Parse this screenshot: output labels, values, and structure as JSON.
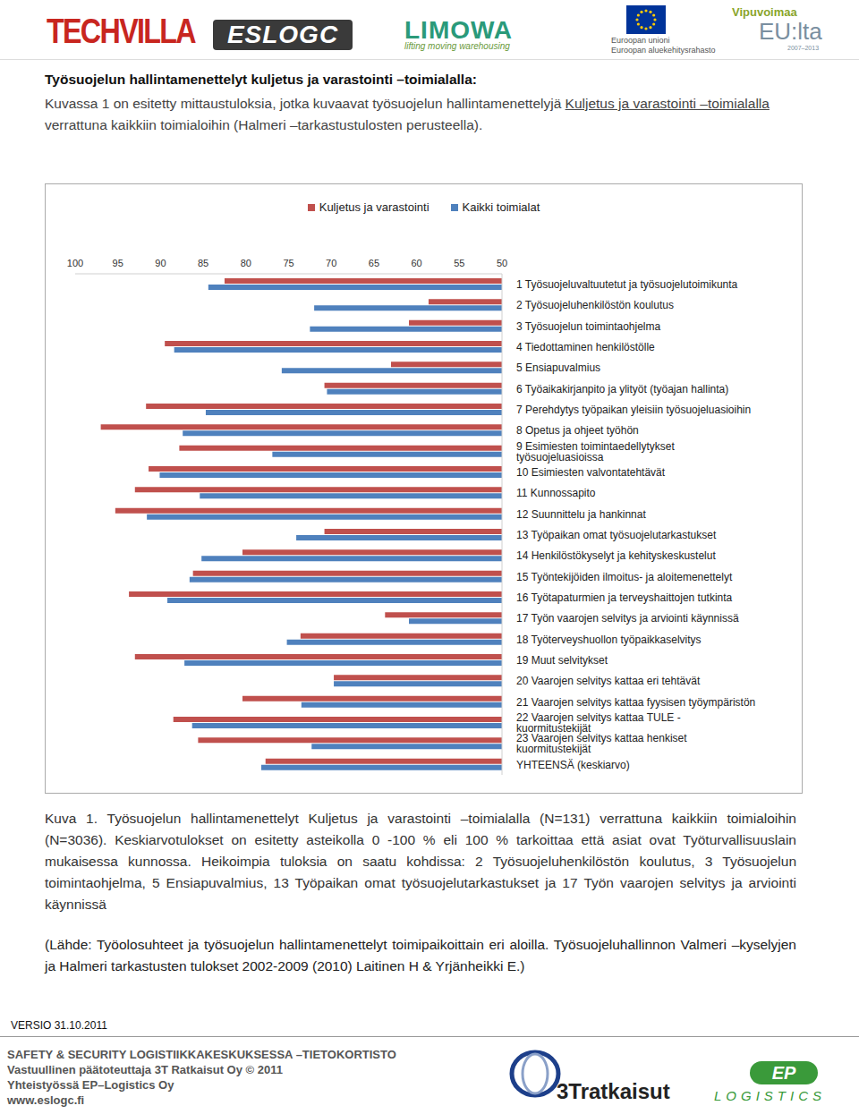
{
  "header": {
    "logos": {
      "techvilla": "TECHVILLA",
      "eslogc": "ESLOGC",
      "limowa": "LIMOWA",
      "limowa_tagline": "lifting moving warehousing",
      "eu_line1": "Euroopan unioni",
      "eu_line2": "Euroopan aluekehitysrahasto",
      "vipu_line1": "Vipuvoimaa",
      "vipu_line2": "EU:lta",
      "vipu_years": "2007–2013"
    }
  },
  "heading": "Työsuojelun hallintamenettelyt kuljetus ja varastointi –toimialalla:",
  "intro": {
    "before": "Kuvassa 1 on esitetty mittaustuloksia, jotka kuvaavat työsuojelun hallintamenettelyjä ",
    "underlined": "Kuljetus ja varastointi –toimialalla",
    "after": " verrattuna kaikkiin toimialoihin (Halmeri –tarkastustulosten perusteella)."
  },
  "chart_data": {
    "type": "bar",
    "orientation": "horizontal",
    "legend": "top",
    "categories": [
      "1 Työsuojeluvaltuutetut ja työsuojelutoimikunta",
      "2 Työsuojeluhenkilöstön koulutus",
      "3 Työsuojelun toimintaohjelma",
      "4 Tiedottaminen henkilöstölle",
      "5 Ensiapuvalmius",
      "6 Työaikakirjanpito ja ylityöt (työajan hallinta)",
      "7 Perehdytys työpaikan yleisiin työsuojeluasioihin",
      "8 Opetus ja ohjeet työhön",
      "9 Esimiesten toimintaedellytykset työsuojeluasioissa",
      "10 Esimiesten valvontatehtävät",
      "11 Kunnossapito",
      "12 Suunnittelu ja hankinnat",
      "13 Työpaikan omat työsuojelutarkastukset",
      "14 Henkilöstökyselyt ja kehityskeskustelut",
      "15 Työntekijöiden ilmoitus- ja aloitemenettelyt",
      "16 Työtapaturmien ja terveyshaittojen tutkinta",
      "17 Työn vaarojen selvitys ja arviointi käynnissä",
      "18 Työterveyshuollon työpaikkaselvitys",
      "19 Muut selvitykset",
      "20 Vaarojen selvitys kattaa eri tehtävät",
      "21 Vaarojen selvitys kattaa fyysisen työympäristön",
      "22 Vaarojen selvitys kattaa TULE - kuormitustekijät",
      "23 Vaarojen selvitys kattaa henkiset kuormitustekijät",
      "YHTEENSÄ (keskiarvo)"
    ],
    "series": [
      {
        "name": "Kuljetus ja varastointi",
        "color": "#c0504d",
        "values": [
          82.5,
          58.6,
          60.9,
          89.5,
          63.0,
          70.8,
          91.7,
          97.0,
          87.8,
          91.4,
          93.0,
          95.3,
          70.8,
          80.4,
          86.2,
          93.7,
          63.7,
          73.6,
          93.0,
          69.7,
          80.4,
          88.5,
          85.6,
          77.7
        ]
      },
      {
        "name": "Kaikki toimialat",
        "color": "#4f81bd",
        "values": [
          84.4,
          72.0,
          72.5,
          88.4,
          75.8,
          70.5,
          84.7,
          87.4,
          76.9,
          90.1,
          85.4,
          91.6,
          74.1,
          85.2,
          86.6,
          89.2,
          60.9,
          75.2,
          87.2,
          69.7,
          73.5,
          86.3,
          72.3,
          78.2
        ]
      }
    ],
    "xlim": [
      50,
      100
    ],
    "xticks": [
      100,
      95,
      90,
      85,
      80,
      75,
      70,
      65,
      60,
      55,
      50
    ]
  },
  "caption": "Kuva 1. Työsuojelun hallintamenettelyt Kuljetus ja varastointi –toimialalla (N=131) verrattuna kaikkiin toimialoihin (N=3036). Keskiarvotulokset on esitetty asteikolla 0 -100 % eli 100 % tarkoittaa että asiat ovat Työturvallisuuslain mukaisessa kunnossa. Heikoimpia tuloksia on saatu kohdissa: 2 Työsuojeluhenkilöstön koulutus, 3 Työsuojelun toimintaohjelma, 5 Ensiapuvalmius, 13 Työpaikan omat työsuojelutarkastukset ja 17 Työn vaarojen selvitys ja arviointi käynnissä",
  "source": "(Lähde: Työolosuhteet ja työsuojelun hallintamenettelyt toimipaikoittain eri aloilla. Työsuojeluhallinnon Valmeri –kyselyjen ja Halmeri tarkastusten tulokset 2002-2009 (2010) Laitinen H & Yrjänheikki E.)",
  "footer": {
    "version": "VERSIO 31.10.2011",
    "line1": "SAFETY & SECURITY LOGISTIIKKAKESKUKSESSA –TIETOKORTISTO",
    "line2": "Vastuullinen päätoteuttaja 3T Ratkaisut Oy © 2011",
    "line3": "Yhteistyössä EP–Logistics Oy",
    "line4": "www.eslogc.fi",
    "logo_3t": "3Tratkaisut",
    "logo_ep": "EP",
    "logo_ep_text": "LOGISTICS"
  }
}
